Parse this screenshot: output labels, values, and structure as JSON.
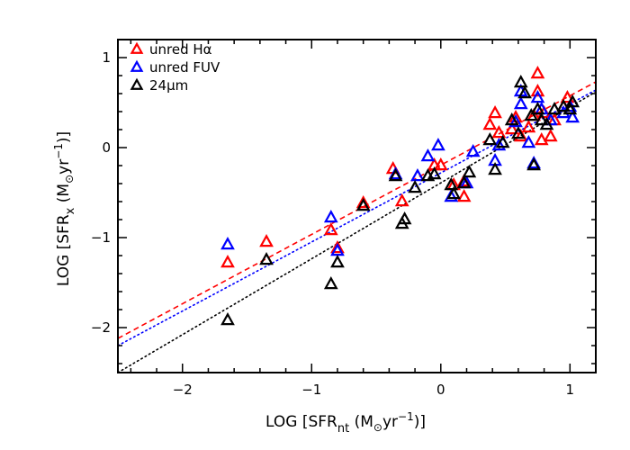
{
  "chart_data": {
    "type": "scatter",
    "title": "",
    "xlabel": "LOG [SFR_nt (M_⊙yr⁻¹)]",
    "ylabel": "LOG [SFR_x (M_⊙yr⁻¹)]",
    "xlabel_parts": {
      "pre": "LOG [SFR",
      "sub": "nt",
      "mid": " (M",
      "sun": "⊙",
      "unit": "yr",
      "sup": "−1",
      "post": ")]"
    },
    "ylabel_parts": {
      "pre": "LOG [SFR",
      "sub": "x",
      "mid": " (M",
      "sun": "⊙",
      "unit": "yr",
      "sup": "−1",
      "post": ")]"
    },
    "xlim": [
      -2.5,
      1.2
    ],
    "ylim": [
      -2.5,
      1.2
    ],
    "xticks": [
      -2,
      -1,
      0,
      1
    ],
    "yticks": [
      -2,
      -1,
      0,
      1
    ],
    "grid": false,
    "legend_position": "top-left",
    "marker": "open-triangle",
    "series": [
      {
        "name": "unred Hα",
        "color": "#ff0000",
        "points": [
          [
            -1.65,
            -1.28
          ],
          [
            -1.35,
            -1.05
          ],
          [
            -0.85,
            -0.92
          ],
          [
            -0.8,
            -1.12
          ],
          [
            -0.6,
            -0.62
          ],
          [
            -0.37,
            -0.24
          ],
          [
            -0.3,
            -0.6
          ],
          [
            -0.05,
            -0.2
          ],
          [
            0.0,
            -0.2
          ],
          [
            0.1,
            -0.42
          ],
          [
            0.18,
            -0.55
          ],
          [
            0.18,
            -0.38
          ],
          [
            0.38,
            0.25
          ],
          [
            0.42,
            0.38
          ],
          [
            0.45,
            0.16
          ],
          [
            0.55,
            0.2
          ],
          [
            0.58,
            0.33
          ],
          [
            0.62,
            0.12
          ],
          [
            0.68,
            0.22
          ],
          [
            0.72,
            0.35
          ],
          [
            0.75,
            0.62
          ],
          [
            0.75,
            0.82
          ],
          [
            0.78,
            0.08
          ],
          [
            0.8,
            0.38
          ],
          [
            0.85,
            0.12
          ],
          [
            0.88,
            0.3
          ],
          [
            0.95,
            0.45
          ],
          [
            0.98,
            0.55
          ]
        ]
      },
      {
        "name": "unred FUV",
        "color": "#0000ff",
        "points": [
          [
            -1.65,
            -1.08
          ],
          [
            -0.85,
            -0.78
          ],
          [
            -0.8,
            -1.15
          ],
          [
            -0.35,
            -0.3
          ],
          [
            -0.18,
            -0.32
          ],
          [
            -0.1,
            -0.1
          ],
          [
            -0.02,
            0.02
          ],
          [
            0.08,
            -0.55
          ],
          [
            0.2,
            -0.4
          ],
          [
            0.25,
            -0.05
          ],
          [
            0.42,
            -0.15
          ],
          [
            0.45,
            0.02
          ],
          [
            0.58,
            0.28
          ],
          [
            0.62,
            0.48
          ],
          [
            0.62,
            0.62
          ],
          [
            0.68,
            0.05
          ],
          [
            0.72,
            -0.18
          ],
          [
            0.75,
            0.55
          ],
          [
            0.78,
            0.42
          ],
          [
            0.85,
            0.3
          ],
          [
            0.95,
            0.38
          ],
          [
            1.0,
            0.45
          ],
          [
            1.02,
            0.33
          ]
        ]
      },
      {
        "name": "24μm",
        "color": "#000000",
        "points": [
          [
            -1.65,
            -1.92
          ],
          [
            -1.35,
            -1.25
          ],
          [
            -0.85,
            -1.52
          ],
          [
            -0.8,
            -1.28
          ],
          [
            -0.6,
            -0.65
          ],
          [
            -0.35,
            -0.32
          ],
          [
            -0.3,
            -0.85
          ],
          [
            -0.28,
            -0.8
          ],
          [
            -0.2,
            -0.45
          ],
          [
            -0.1,
            -0.32
          ],
          [
            -0.05,
            -0.3
          ],
          [
            0.08,
            -0.42
          ],
          [
            0.1,
            -0.52
          ],
          [
            0.18,
            -0.4
          ],
          [
            0.22,
            -0.28
          ],
          [
            0.38,
            0.08
          ],
          [
            0.42,
            -0.25
          ],
          [
            0.48,
            0.05
          ],
          [
            0.55,
            0.3
          ],
          [
            0.6,
            0.15
          ],
          [
            0.62,
            0.72
          ],
          [
            0.65,
            0.6
          ],
          [
            0.7,
            0.35
          ],
          [
            0.72,
            -0.2
          ],
          [
            0.75,
            0.42
          ],
          [
            0.78,
            0.3
          ],
          [
            0.82,
            0.25
          ],
          [
            0.88,
            0.42
          ],
          [
            0.95,
            0.45
          ],
          [
            1.0,
            0.42
          ],
          [
            1.02,
            0.5
          ]
        ]
      }
    ],
    "fit_lines": [
      {
        "color": "#ff0000",
        "style": "dashed",
        "x": [
          -2.5,
          1.2
        ],
        "y": [
          -2.12,
          0.73
        ]
      },
      {
        "color": "#0000ff",
        "style": "dotted",
        "x": [
          -2.5,
          1.2
        ],
        "y": [
          -2.2,
          0.64
        ]
      },
      {
        "color": "#000000",
        "style": "dotted",
        "x": [
          -2.5,
          1.2
        ],
        "y": [
          -2.5,
          0.62
        ]
      }
    ]
  }
}
